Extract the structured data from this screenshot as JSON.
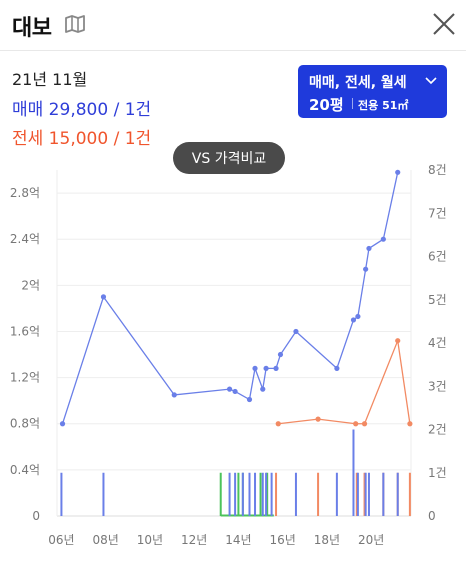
{
  "header": {
    "title": "대보",
    "map_icon": "map-icon",
    "close_icon": "close-icon"
  },
  "info": {
    "date": "21년 11월",
    "sale": "매매 29,800 / 1건",
    "jeonse": "전세 15,000 / 1건"
  },
  "filter": {
    "types": "매매, 전세, 월세",
    "size": "20평",
    "area": "전용 51㎡",
    "chevron_icon": "chevron-down-icon"
  },
  "vs_button": "VS 가격비교",
  "colors": {
    "sale": "#6a7fe8",
    "jeonse": "#f28a63",
    "rent": "#4cc35b",
    "accent": "#1f3adb"
  },
  "chart_data": {
    "type": "line",
    "x_tick_labels": [
      "06년",
      "08년",
      "10년",
      "12년",
      "14년",
      "16년",
      "18년",
      "20년"
    ],
    "x_ticks": [
      2006,
      2008,
      2010,
      2012,
      2014,
      2016,
      2018,
      2020
    ],
    "xlim": [
      2005.8,
      2021.8
    ],
    "y_left": {
      "tick_labels": [
        "0",
        "0.4억",
        "0.8억",
        "1.2억",
        "1.6억",
        "2억",
        "2.4억",
        "2.8억"
      ],
      "ticks": [
        0,
        0.4,
        0.8,
        1.2,
        1.6,
        2.0,
        2.4,
        2.8
      ],
      "ylim": [
        0,
        3.0
      ]
    },
    "y_right": {
      "tick_labels": [
        "0",
        "1건",
        "2건",
        "3건",
        "4건",
        "5건",
        "6건",
        "7건",
        "8건"
      ],
      "ticks": [
        0,
        1,
        2,
        3,
        4,
        5,
        6,
        7,
        8
      ],
      "ylim": [
        0,
        8
      ]
    },
    "grid": true,
    "series": [
      {
        "key": "sale",
        "points": [
          [
            2006.05,
            0.8
          ],
          [
            2007.9,
            1.9
          ],
          [
            2011.1,
            1.05
          ],
          [
            2013.6,
            1.1
          ],
          [
            2013.85,
            1.08
          ],
          [
            2014.5,
            1.01
          ],
          [
            2014.75,
            1.28
          ],
          [
            2015.1,
            1.1
          ],
          [
            2015.25,
            1.28
          ],
          [
            2015.7,
            1.28
          ],
          [
            2015.9,
            1.4
          ],
          [
            2016.6,
            1.6
          ],
          [
            2018.45,
            1.28
          ],
          [
            2019.2,
            1.7
          ],
          [
            2019.4,
            1.73
          ],
          [
            2019.75,
            2.14
          ],
          [
            2019.9,
            2.32
          ],
          [
            2020.55,
            2.4
          ],
          [
            2021.2,
            2.98
          ]
        ]
      },
      {
        "key": "jeonse",
        "points": [
          [
            2015.8,
            0.8
          ],
          [
            2017.6,
            0.84
          ],
          [
            2019.3,
            0.8
          ],
          [
            2019.7,
            0.8
          ],
          [
            2021.2,
            1.52
          ],
          [
            2021.75,
            0.8
          ]
        ]
      }
    ],
    "volume": {
      "sale_x": [
        2006.0,
        2007.9,
        2013.6,
        2013.85,
        2014.2,
        2014.5,
        2014.75,
        2015.1,
        2015.25,
        2015.5,
        2016.6,
        2018.45,
        2019.2,
        2019.4,
        2019.75,
        2019.9,
        2020.55,
        2021.2
      ],
      "jeonse_x": [
        2015.7,
        2017.6,
        2019.35,
        2019.7,
        2020.55,
        2021.2,
        2021.75
      ],
      "rent_x": [
        2013.2,
        2014.0,
        2014.2,
        2015.0,
        2015.3
      ],
      "sale_counts": [
        1,
        1,
        1,
        1,
        1,
        1,
        1,
        1,
        1,
        1,
        1,
        1,
        2,
        1,
        1,
        1,
        1,
        1
      ],
      "jeonse_counts": [
        1,
        1,
        1,
        1,
        1,
        1,
        1
      ],
      "rent_counts": [
        1,
        1,
        1,
        1,
        1
      ],
      "rent_baseline_span": [
        2013.2,
        2015.6
      ]
    }
  }
}
